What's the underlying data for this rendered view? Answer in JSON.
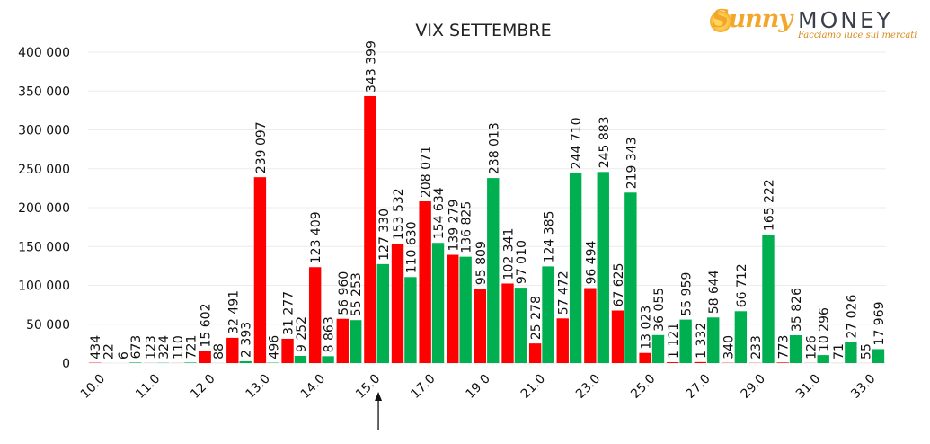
{
  "logo": {
    "brand_script": "Sunny",
    "brand_word": "MONEY",
    "tagline": "Facciamo luce sui mercati"
  },
  "chart_data": {
    "type": "bar",
    "title": "VIX SETTEMBRE",
    "ylim": [
      0,
      400000
    ],
    "yticks": [
      "0",
      "50 000",
      "100 000",
      "150 000",
      "200 000",
      "250 000",
      "300 000",
      "350 000",
      "400 000"
    ],
    "xtick_labels": [
      "10.0",
      "11.0",
      "12.0",
      "13.0",
      "14.0",
      "15.0",
      "17.0",
      "19.0",
      "21.0",
      "23.0",
      "25.0",
      "27.0",
      "29.0",
      "31.0",
      "33.0"
    ],
    "xtick_bar_index": [
      0,
      2,
      4,
      6,
      8,
      10,
      12,
      14,
      16,
      18,
      20,
      22,
      24,
      26,
      28
    ],
    "marker_arrow_bar_index": 10,
    "grid": true,
    "legend": "none",
    "colors": {
      "put": "#ff0000",
      "call": "#00b050",
      "arrow": "#111111"
    },
    "strikes": [
      {
        "puts": 434,
        "calls": 22,
        "put_label": "434",
        "call_label": "22"
      },
      {
        "puts": 6,
        "calls": 673,
        "put_label": "6",
        "call_label": "673"
      },
      {
        "puts": 123,
        "calls": 324,
        "put_label": "123",
        "call_label": "324"
      },
      {
        "puts": 110,
        "calls": 721,
        "put_label": "110",
        "call_label": "721"
      },
      {
        "puts": 15602,
        "calls": 88,
        "put_label": "15 602",
        "call_label": "88"
      },
      {
        "puts": 32491,
        "calls": 2393,
        "put_label": "32 491",
        "call_label": "2 393"
      },
      {
        "puts": 239097,
        "calls": 496,
        "put_label": "239 097",
        "call_label": "496"
      },
      {
        "puts": 31277,
        "calls": 9252,
        "put_label": "31 277",
        "call_label": "9 252"
      },
      {
        "puts": 123409,
        "calls": 8863,
        "put_label": "123 409",
        "call_label": "8 863"
      },
      {
        "puts": 56960,
        "calls": 55253,
        "put_label": "56 960",
        "call_label": "55 253"
      },
      {
        "puts": 343399,
        "calls": 127330,
        "put_label": "343 399",
        "call_label": "127 330"
      },
      {
        "puts": 153532,
        "calls": 110630,
        "put_label": "153 532",
        "call_label": "110 630"
      },
      {
        "puts": 208071,
        "calls": 154634,
        "put_label": "208 071",
        "call_label": "154 634"
      },
      {
        "puts": 139279,
        "calls": 136825,
        "put_label": "139 279",
        "call_label": "136 825"
      },
      {
        "puts": 95809,
        "calls": 238013,
        "put_label": "95 809",
        "call_label": "238 013"
      },
      {
        "puts": 102341,
        "calls": 97010,
        "put_label": "102 341",
        "call_label": "97 010"
      },
      {
        "puts": 25278,
        "calls": 124385,
        "put_label": "25 278",
        "call_label": "124 385"
      },
      {
        "puts": 57472,
        "calls": 244710,
        "put_label": "57 472",
        "call_label": "244 710"
      },
      {
        "puts": 96494,
        "calls": 245883,
        "put_label": "96 494",
        "call_label": "245 883"
      },
      {
        "puts": 67625,
        "calls": 219343,
        "put_label": "67 625",
        "call_label": "219 343"
      },
      {
        "puts": 13023,
        "calls": 36055,
        "put_label": "13 023",
        "call_label": "36 055"
      },
      {
        "puts": 1121,
        "calls": 55959,
        "put_label": "1 121",
        "call_label": "55 959"
      },
      {
        "puts": 1332,
        "calls": 58644,
        "put_label": "1 332",
        "call_label": "58 644"
      },
      {
        "puts": 340,
        "calls": 66712,
        "put_label": "340",
        "call_label": "66 712"
      },
      {
        "puts": 233,
        "calls": 165222,
        "put_label": "233",
        "call_label": "165 222"
      },
      {
        "puts": 773,
        "calls": 35826,
        "put_label": "773",
        "call_label": "35 826"
      },
      {
        "puts": 126,
        "calls": 10296,
        "put_label": "126",
        "call_label": "10 296"
      },
      {
        "puts": 71,
        "calls": 27026,
        "put_label": "71",
        "call_label": "27 026"
      },
      {
        "puts": 55,
        "calls": 17969,
        "put_label": "55",
        "call_label": "17 969"
      }
    ]
  }
}
